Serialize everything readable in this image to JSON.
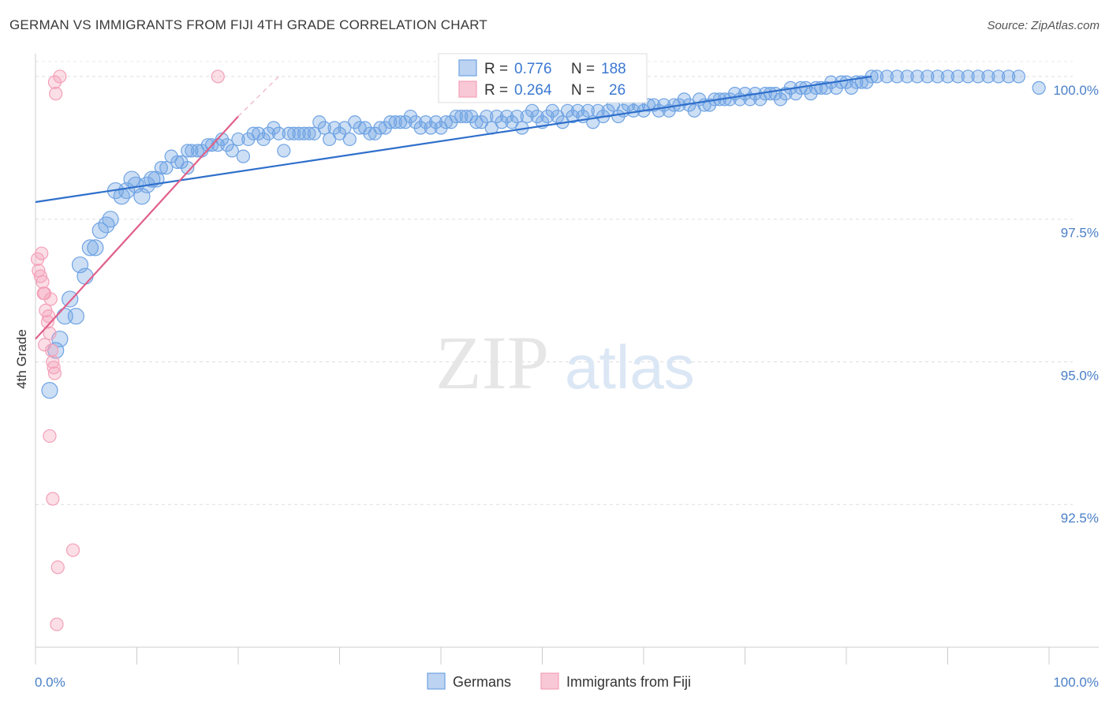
{
  "title": "GERMAN VS IMMIGRANTS FROM FIJI 4TH GRADE CORRELATION CHART",
  "source": "Source: ZipAtlas.com",
  "watermark": {
    "zip": "ZIP",
    "atlas": "atlas"
  },
  "chart_data": {
    "type": "scatter",
    "ylabel": "4th Grade",
    "xlim": [
      0,
      100
    ],
    "ylim": [
      90.0,
      100.4
    ],
    "x_tick_labels": [
      "0.0%",
      "100.0%"
    ],
    "y_ticks": [
      {
        "value": 100.0,
        "label": "100.0%"
      },
      {
        "value": 97.5,
        "label": "97.5%"
      },
      {
        "value": 95.0,
        "label": "95.0%"
      },
      {
        "value": 92.5,
        "label": "92.5%"
      }
    ],
    "grid": true,
    "legend_position": "bottom-center",
    "stats_box": {
      "r_label": "R =",
      "n_label": "N =",
      "rows": [
        {
          "series": "Germans",
          "r": "0.776",
          "n": "188"
        },
        {
          "series": "Immigrants from Fiji",
          "r": "0.264",
          "n": "26"
        }
      ]
    },
    "series": [
      {
        "name": "Germans",
        "color": "#6fa3e3",
        "line_color": "#2f6fcb",
        "trend": [
          [
            0,
            97.8
          ],
          [
            82.5,
            100.0
          ]
        ],
        "points": [
          [
            1.4,
            94.5
          ],
          [
            2.0,
            95.2
          ],
          [
            2.4,
            95.4
          ],
          [
            2.9,
            95.8
          ],
          [
            3.4,
            96.1
          ],
          [
            4.0,
            95.8
          ],
          [
            4.4,
            96.7
          ],
          [
            4.9,
            96.5
          ],
          [
            5.4,
            97.0
          ],
          [
            5.9,
            97.0
          ],
          [
            6.4,
            97.3
          ],
          [
            7.4,
            97.5
          ],
          [
            7.0,
            97.4
          ],
          [
            7.9,
            98.0
          ],
          [
            8.5,
            97.9
          ],
          [
            9.0,
            98.0
          ],
          [
            9.5,
            98.2
          ],
          [
            9.9,
            98.1
          ],
          [
            10.5,
            97.9
          ],
          [
            11.0,
            98.1
          ],
          [
            11.5,
            98.2
          ],
          [
            11.9,
            98.2
          ],
          [
            12.4,
            98.4
          ],
          [
            12.9,
            98.4
          ],
          [
            13.4,
            98.6
          ],
          [
            14.0,
            98.5
          ],
          [
            14.4,
            98.5
          ],
          [
            15.0,
            98.7
          ],
          [
            15.4,
            98.7
          ],
          [
            15.0,
            98.4
          ],
          [
            16.0,
            98.7
          ],
          [
            16.4,
            98.7
          ],
          [
            17.0,
            98.8
          ],
          [
            17.4,
            98.8
          ],
          [
            18.0,
            98.8
          ],
          [
            18.4,
            98.9
          ],
          [
            18.9,
            98.8
          ],
          [
            19.4,
            98.7
          ],
          [
            20.0,
            98.9
          ],
          [
            20.5,
            98.6
          ],
          [
            21.0,
            98.9
          ],
          [
            21.5,
            99.0
          ],
          [
            22.0,
            99.0
          ],
          [
            22.5,
            98.9
          ],
          [
            23.0,
            99.0
          ],
          [
            23.5,
            99.1
          ],
          [
            24.0,
            99.0
          ],
          [
            24.5,
            98.7
          ],
          [
            25.0,
            99.0
          ],
          [
            25.5,
            99.0
          ],
          [
            26.0,
            99.0
          ],
          [
            26.5,
            99.0
          ],
          [
            27.0,
            99.0
          ],
          [
            27.5,
            99.0
          ],
          [
            28.0,
            99.2
          ],
          [
            28.5,
            99.1
          ],
          [
            29.0,
            98.9
          ],
          [
            29.5,
            99.1
          ],
          [
            30.0,
            99.0
          ],
          [
            30.5,
            99.1
          ],
          [
            31.0,
            98.9
          ],
          [
            31.5,
            99.2
          ],
          [
            32.0,
            99.1
          ],
          [
            32.5,
            99.1
          ],
          [
            33.0,
            99.0
          ],
          [
            33.5,
            99.0
          ],
          [
            34.0,
            99.1
          ],
          [
            34.5,
            99.1
          ],
          [
            35.0,
            99.2
          ],
          [
            35.5,
            99.2
          ],
          [
            36.0,
            99.2
          ],
          [
            36.5,
            99.2
          ],
          [
            37.0,
            99.3
          ],
          [
            37.5,
            99.2
          ],
          [
            38.0,
            99.1
          ],
          [
            38.5,
            99.2
          ],
          [
            39.0,
            99.1
          ],
          [
            39.5,
            99.2
          ],
          [
            40.0,
            99.1
          ],
          [
            40.5,
            99.2
          ],
          [
            41.0,
            99.2
          ],
          [
            41.5,
            99.3
          ],
          [
            42.0,
            99.3
          ],
          [
            42.5,
            99.3
          ],
          [
            43.0,
            99.3
          ],
          [
            43.5,
            99.2
          ],
          [
            44.0,
            99.2
          ],
          [
            44.5,
            99.3
          ],
          [
            45.0,
            99.1
          ],
          [
            45.5,
            99.3
          ],
          [
            46.0,
            99.2
          ],
          [
            46.5,
            99.3
          ],
          [
            47.0,
            99.2
          ],
          [
            47.5,
            99.3
          ],
          [
            48.0,
            99.1
          ],
          [
            48.5,
            99.3
          ],
          [
            49.0,
            99.4
          ],
          [
            49.5,
            99.3
          ],
          [
            50.0,
            99.2
          ],
          [
            50.5,
            99.3
          ],
          [
            51.0,
            99.4
          ],
          [
            51.5,
            99.3
          ],
          [
            52.0,
            99.2
          ],
          [
            52.5,
            99.4
          ],
          [
            53.0,
            99.3
          ],
          [
            53.5,
            99.4
          ],
          [
            54.0,
            99.3
          ],
          [
            54.5,
            99.4
          ],
          [
            55.0,
            99.2
          ],
          [
            55.5,
            99.4
          ],
          [
            56.0,
            99.3
          ],
          [
            56.5,
            99.4
          ],
          [
            57.0,
            99.5
          ],
          [
            57.5,
            99.3
          ],
          [
            58.0,
            99.4
          ],
          [
            58.5,
            99.5
          ],
          [
            59.0,
            99.4
          ],
          [
            59.5,
            99.5
          ],
          [
            60.0,
            99.4
          ],
          [
            60.5,
            99.5
          ],
          [
            61.0,
            99.5
          ],
          [
            61.5,
            99.4
          ],
          [
            62.0,
            99.5
          ],
          [
            62.5,
            99.4
          ],
          [
            63.0,
            99.5
          ],
          [
            63.5,
            99.5
          ],
          [
            64.0,
            99.6
          ],
          [
            64.5,
            99.5
          ],
          [
            65.0,
            99.4
          ],
          [
            65.5,
            99.6
          ],
          [
            66.0,
            99.5
          ],
          [
            66.5,
            99.5
          ],
          [
            67.0,
            99.6
          ],
          [
            67.5,
            99.6
          ],
          [
            68.0,
            99.6
          ],
          [
            68.5,
            99.6
          ],
          [
            69.0,
            99.7
          ],
          [
            69.5,
            99.6
          ],
          [
            70.0,
            99.7
          ],
          [
            70.5,
            99.6
          ],
          [
            71.0,
            99.7
          ],
          [
            71.5,
            99.6
          ],
          [
            72.0,
            99.7
          ],
          [
            72.5,
            99.7
          ],
          [
            73.0,
            99.7
          ],
          [
            73.5,
            99.6
          ],
          [
            74.0,
            99.7
          ],
          [
            74.5,
            99.8
          ],
          [
            75.0,
            99.7
          ],
          [
            75.5,
            99.8
          ],
          [
            76.0,
            99.8
          ],
          [
            76.5,
            99.7
          ],
          [
            77.0,
            99.8
          ],
          [
            77.5,
            99.8
          ],
          [
            78.0,
            99.8
          ],
          [
            78.5,
            99.9
          ],
          [
            79.0,
            99.8
          ],
          [
            79.5,
            99.9
          ],
          [
            80.0,
            99.9
          ],
          [
            80.5,
            99.8
          ],
          [
            81.0,
            99.9
          ],
          [
            81.5,
            99.9
          ],
          [
            82.0,
            99.9
          ],
          [
            82.5,
            100.0
          ],
          [
            83.0,
            100.0
          ],
          [
            84.0,
            100.0
          ],
          [
            85.0,
            100.0
          ],
          [
            86.0,
            100.0
          ],
          [
            87.0,
            100.0
          ],
          [
            88.0,
            100.0
          ],
          [
            89.0,
            100.0
          ],
          [
            90.0,
            100.0
          ],
          [
            91.0,
            100.0
          ],
          [
            92.0,
            100.0
          ],
          [
            93.0,
            100.0
          ],
          [
            94.0,
            100.0
          ],
          [
            95.0,
            100.0
          ],
          [
            96.0,
            100.0
          ],
          [
            97.0,
            100.0
          ],
          [
            99.0,
            99.8
          ]
        ]
      },
      {
        "name": "Immigrants from Fiji",
        "color": "#f4a0b8",
        "line_color": "#e0608a",
        "trend": [
          [
            0,
            95.4
          ],
          [
            20.0,
            99.3
          ]
        ],
        "trend_dashed": [
          [
            20.0,
            99.3
          ],
          [
            24.0,
            100.0
          ]
        ],
        "points": [
          [
            0.2,
            96.8
          ],
          [
            0.3,
            96.6
          ],
          [
            0.5,
            96.5
          ],
          [
            0.6,
            96.9
          ],
          [
            0.7,
            96.4
          ],
          [
            0.8,
            96.2
          ],
          [
            0.9,
            96.2
          ],
          [
            1.0,
            95.9
          ],
          [
            1.2,
            95.7
          ],
          [
            1.3,
            95.8
          ],
          [
            1.4,
            95.5
          ],
          [
            1.5,
            96.1
          ],
          [
            1.6,
            95.2
          ],
          [
            1.7,
            95.0
          ],
          [
            1.8,
            94.9
          ],
          [
            1.9,
            94.8
          ],
          [
            0.9,
            95.3
          ],
          [
            1.4,
            93.7
          ],
          [
            1.7,
            92.6
          ],
          [
            2.2,
            91.4
          ],
          [
            3.7,
            91.7
          ],
          [
            2.1,
            90.4
          ],
          [
            1.9,
            99.9
          ],
          [
            2.0,
            99.7
          ],
          [
            2.4,
            100.0
          ],
          [
            18.0,
            100.0
          ]
        ]
      }
    ]
  }
}
